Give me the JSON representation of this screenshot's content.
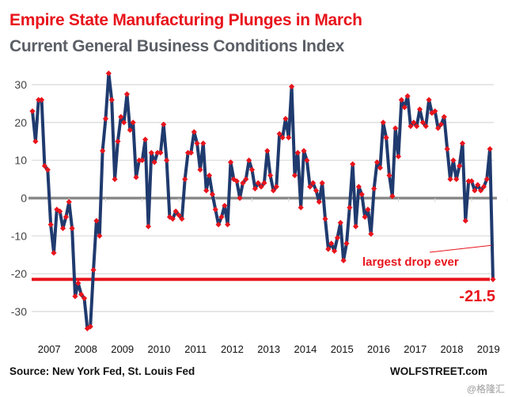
{
  "header": {
    "title": "Empire State Manufacturing  Plunges in March",
    "subtitle": "Current General Business Conditions  Index"
  },
  "footer": {
    "source": "Source: New York Fed, St. Louis Fed",
    "brand": "WOLFSTREET.com",
    "watermark": "@格隆汇"
  },
  "colors": {
    "title": "#e8141c",
    "subtitle": "#5b5f66",
    "line": "#1f3a6e",
    "marker": "#e8141c",
    "zero_line": "#8a8a8a",
    "reference_line": "#e8141c",
    "grid": "#d9d9d9"
  },
  "chart_data": {
    "type": "line",
    "title": "Empire State Manufacturing  Plunges in March",
    "subtitle": "Current General Business Conditions  Index",
    "xlabel": "",
    "ylabel": "",
    "ylim": [
      -35,
      33
    ],
    "yticks": [
      30,
      20,
      10,
      0,
      -10,
      -20,
      -30
    ],
    "ytick_labels": [
      "30",
      "20",
      "10",
      "0",
      "-10",
      "-20",
      "-30"
    ],
    "x_start": "2007-01",
    "x_end": "2020-03",
    "xtick_labels": [
      "2007",
      "2008",
      "2009",
      "2010",
      "2011",
      "2012",
      "2013",
      "2014",
      "2015",
      "2016",
      "2017",
      "2018",
      "2019"
    ],
    "grid": true,
    "legend": "none",
    "series": [
      {
        "name": "General Business Conditions Index",
        "frequency": "monthly",
        "values": [
          23,
          15,
          26,
          26,
          8.5,
          7.5,
          -7,
          -14.5,
          -3,
          -3.5,
          -8,
          -5,
          -1,
          -8,
          -26,
          -22.5,
          -25.5,
          -26.5,
          -34.5,
          -34,
          -19,
          -6,
          -10,
          12.5,
          21,
          33,
          26,
          5,
          15,
          21.5,
          20,
          27.5,
          18,
          20,
          5.5,
          10,
          10,
          15.5,
          -7.5,
          12,
          9.5,
          12,
          12,
          19.5,
          10,
          -5,
          -5.5,
          -3.5,
          -4.5,
          -5.5,
          5,
          12,
          12,
          17.5,
          14.5,
          7.5,
          14.5,
          2,
          6,
          1,
          -3,
          -7,
          -5,
          -2,
          -7,
          9.5,
          5,
          4.5,
          0,
          4,
          5,
          10,
          7.5,
          2.5,
          4,
          3,
          4,
          12.5,
          6,
          2,
          3,
          17,
          16,
          21,
          16,
          29.5,
          6,
          12,
          -2.5,
          12.5,
          10,
          3,
          4,
          2,
          -1,
          4,
          -5.5,
          -13.5,
          -12,
          -14,
          -10.5,
          -6.5,
          -16.5,
          -12,
          -2.5,
          9,
          -7.5,
          3,
          1,
          -5,
          -3,
          -9.5,
          2.5,
          9.5,
          8,
          20,
          16,
          6,
          0.5,
          18.5,
          11,
          26,
          24,
          27,
          19,
          20,
          19,
          23.5,
          20,
          19,
          26,
          22.5,
          23,
          18.5,
          19.5,
          21.5,
          13,
          5,
          10,
          5,
          8.5,
          14.5,
          -6,
          4.5,
          4.5,
          2,
          3.5,
          2,
          3,
          5,
          13,
          -21.5
        ]
      }
    ],
    "reference_line": {
      "value": -21.5,
      "label": "-21.5",
      "color": "#e8141c"
    },
    "annotations": [
      {
        "text": "largest drop ever",
        "points_to": "2020-03"
      },
      {
        "text": "-21.5",
        "points_to": "2020-03"
      }
    ]
  }
}
